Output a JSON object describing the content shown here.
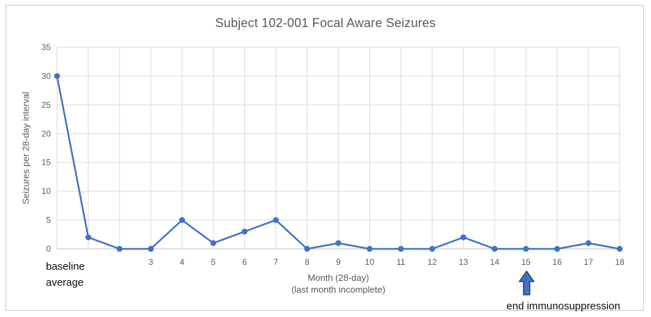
{
  "chart_data": {
    "type": "line",
    "title": "Subject 102-001 Focal Aware Seizures",
    "y_axis": {
      "label": "Seizures per 28-day interval",
      "ticks": [
        0,
        5,
        10,
        15,
        20,
        25,
        30,
        35
      ],
      "range": [
        0,
        35
      ]
    },
    "x_axis": {
      "label_line1": "Month (28-day)",
      "label_line2": "(last month incomplete)",
      "first_category": [
        "baseline",
        "average"
      ],
      "tick_labels": [
        "",
        "",
        "",
        "3",
        "4",
        "5",
        "6",
        "7",
        "8",
        "9",
        "10",
        "11",
        "12",
        "13",
        "14",
        "15",
        "16",
        "17",
        "18"
      ]
    },
    "series": [
      {
        "name": "Focal aware seizures per 28-day interval",
        "values": [
          30,
          2,
          0,
          0,
          5,
          1,
          3,
          5,
          0,
          1,
          0,
          0,
          0,
          2,
          0,
          0,
          0,
          1,
          0
        ]
      }
    ],
    "annotation": {
      "text": "end immunosuppression",
      "arrow_month": 15,
      "icon": "up-arrow"
    },
    "layout_hints": {
      "grid": "on",
      "legend": "none"
    },
    "colors": {
      "line": "#4472C4",
      "marker": "#4472C4",
      "arrow_fill": "#4472C4",
      "arrow_stroke": "#24426B",
      "gridline": "#D9D9D9",
      "axis_line": "#BFBFBF",
      "text_gray": "#595959",
      "text_black": "#0d0d0d",
      "frame_border": "#C9C9C9"
    }
  }
}
